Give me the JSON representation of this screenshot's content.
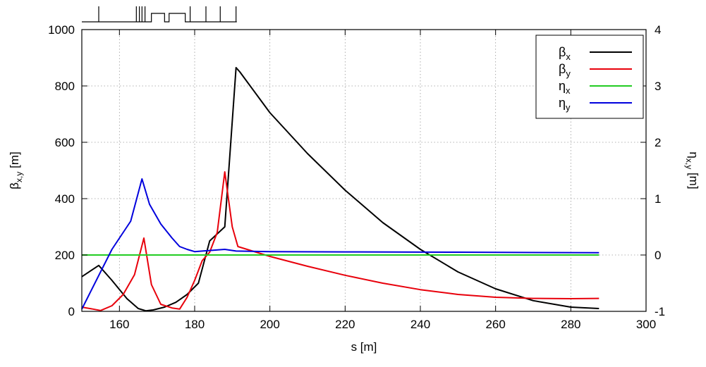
{
  "chart_data": {
    "type": "line",
    "xlabel": "s [m]",
    "ylabel_left_main": "β",
    "ylabel_left_sub": "x,y",
    "ylabel_left_unit": " [m]",
    "ylabel_right_main": "η",
    "ylabel_right_sub": "x,y",
    "ylabel_right_unit": " [m]",
    "xlim": [
      150,
      300
    ],
    "ylim_left": [
      0,
      1000
    ],
    "ylim_right": [
      -1,
      4
    ],
    "xticks": [
      "160",
      "180",
      "200",
      "220",
      "240",
      "260",
      "280",
      "300"
    ],
    "yticks_left": [
      "0",
      "200",
      "400",
      "600",
      "800",
      "1000"
    ],
    "yticks_right": [
      "-1",
      "0",
      "1",
      "2",
      "3",
      "4"
    ],
    "grid": true,
    "legend_position": "top-right",
    "series": [
      {
        "name_main": "β",
        "name_sub": "x",
        "axis": "left",
        "color": "#000000",
        "x": [
          150,
          154.5,
          158,
          162,
          165,
          167,
          169,
          172,
          175,
          178,
          181,
          184,
          188,
          191,
          192,
          200,
          210,
          220,
          230,
          240,
          250,
          260,
          270,
          280,
          287.5
        ],
        "y": [
          123,
          163,
          110,
          45,
          10,
          2,
          5,
          15,
          32,
          60,
          100,
          250,
          300,
          865,
          850,
          705,
          560,
          430,
          315,
          220,
          140,
          80,
          38,
          15,
          10
        ]
      },
      {
        "name_main": "β",
        "name_sub": "y",
        "axis": "left",
        "color": "#e8000b",
        "x": [
          150,
          153,
          155,
          158,
          161,
          164,
          166.5,
          168.5,
          171,
          174,
          176,
          178,
          180,
          182,
          184,
          186,
          188,
          190,
          191.5,
          200,
          210,
          220,
          230,
          240,
          250,
          260,
          270,
          280,
          287.5
        ],
        "y": [
          15,
          8,
          3,
          20,
          60,
          130,
          260,
          95,
          25,
          12,
          8,
          50,
          110,
          180,
          210,
          280,
          495,
          300,
          230,
          195,
          160,
          128,
          100,
          77,
          60,
          50,
          46,
          45,
          46
        ]
      },
      {
        "name_main": "η",
        "name_sub": "x",
        "axis": "right",
        "color": "#22cc22",
        "x": [
          150,
          287.5
        ],
        "y": [
          0,
          0
        ]
      },
      {
        "name_main": "η",
        "name_sub": "y",
        "axis": "right",
        "color": "#0000dd",
        "x": [
          150,
          158,
          163,
          166,
          168,
          171,
          174,
          176,
          178,
          180,
          182,
          184,
          188,
          191,
          200,
          220,
          250,
          287.5
        ],
        "y": [
          -0.96,
          0.1,
          0.6,
          1.35,
          0.9,
          0.55,
          0.3,
          0.15,
          0.1,
          0.06,
          0.07,
          0.08,
          0.1,
          0.07,
          0.06,
          0.055,
          0.05,
          0.04
        ]
      }
    ]
  },
  "lattice_strip": {
    "line_color": "#000000"
  }
}
